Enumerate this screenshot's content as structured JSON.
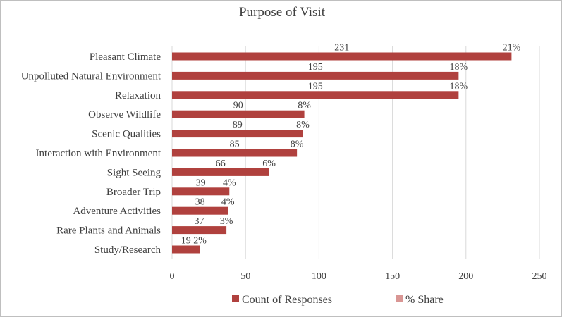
{
  "chart_data": {
    "type": "bar",
    "orientation": "horizontal",
    "title": "Purpose of Visit",
    "categories": [
      "Pleasant Climate",
      "Unpolluted Natural Environment",
      "Relaxation",
      "Observe Wildlife",
      "Scenic Qualities",
      "Interaction with Environment",
      "Sight Seeing",
      "Broader Trip",
      "Adventure Activities",
      "Rare Plants and Animals",
      "Study/Research"
    ],
    "series": [
      {
        "name": "Count of Responses",
        "color": "#b0413e",
        "values": [
          231,
          195,
          195,
          90,
          89,
          85,
          66,
          39,
          38,
          37,
          19
        ]
      },
      {
        "name": "% Share",
        "color": "#d99694",
        "values": [
          "21%",
          "18%",
          "18%",
          "8%",
          "8%",
          "8%",
          "6%",
          "4%",
          "4%",
          "3%",
          "2%"
        ]
      }
    ],
    "xlim": [
      0,
      250
    ],
    "xticks": [
      "0",
      "50",
      "100",
      "150",
      "200",
      "250"
    ],
    "grid": true,
    "legend_position": "bottom"
  }
}
